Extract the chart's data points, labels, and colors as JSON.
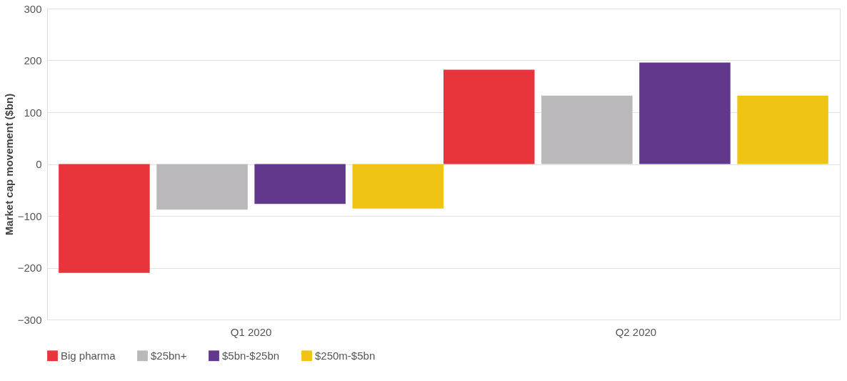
{
  "chart_data": {
    "type": "bar",
    "ylabel": "Market cap movement ($bn)",
    "categories": [
      "Q1 2020",
      "Q2 2020"
    ],
    "series": [
      {
        "name": "Big pharma",
        "color": "#e8353b",
        "values": [
          -210,
          182
        ]
      },
      {
        "name": "$25bn+",
        "color": "#bab8bb",
        "values": [
          -88,
          132
        ]
      },
      {
        "name": "$5bn-$25bn",
        "color": "#62388c",
        "values": [
          -77,
          196
        ]
      },
      {
        "name": "$250m-$5bn",
        "color": "#f0c415",
        "values": [
          -86,
          132
        ]
      }
    ],
    "ylim": [
      -300,
      300
    ],
    "yticks": [
      -300,
      -200,
      -100,
      0,
      100,
      200,
      300
    ],
    "grid": "y",
    "legend": "bottom"
  }
}
